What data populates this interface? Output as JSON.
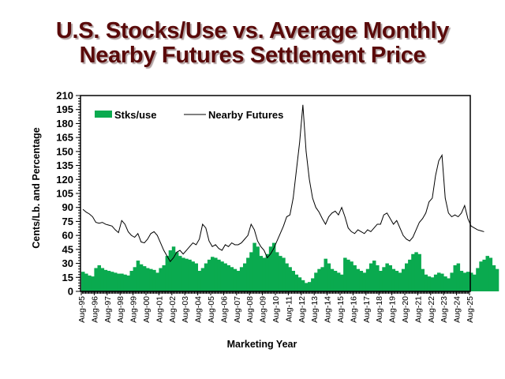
{
  "chart_data": {
    "type": "bar+line",
    "title": [
      "U.S. Stocks/Use vs. Average Monthly",
      "Nearby Futures Settlement Price"
    ],
    "xlabel": "Marketing Year",
    "ylabel": "Cents/Lb. and Percentage",
    "ylim": [
      0,
      210
    ],
    "yticks": [
      0,
      15,
      30,
      45,
      60,
      75,
      90,
      105,
      120,
      135,
      150,
      165,
      180,
      195,
      210
    ],
    "xticks": [
      "Aug-95",
      "Aug-96",
      "Aug-97",
      "Aug-98",
      "Aug-99",
      "Aug-00",
      "Aug-01",
      "Aug-02",
      "Aug-03",
      "Aug-04",
      "Aug-05",
      "Aug-06",
      "Aug-07",
      "Aug-08",
      "Aug-09",
      "Aug-10",
      "Aug-11",
      "Aug-12",
      "Aug-13",
      "Aug-14",
      "Aug-15",
      "Aug-16",
      "Aug-17",
      "Aug-18",
      "Aug-19",
      "Aug-20",
      "Aug-21",
      "Aug-22",
      "Aug-23",
      "Aug-24",
      "Aug-25"
    ],
    "x_start": 1995.583,
    "x_step_years": 0.25,
    "legend_position": "top-left",
    "series": [
      {
        "name": "Stks/use",
        "type": "bar",
        "color": "#0aaa4f",
        "values": [
          21,
          19,
          17,
          16,
          25,
          28,
          25,
          23,
          22,
          21,
          20,
          19,
          19,
          18,
          17,
          22,
          26,
          33,
          29,
          27,
          25,
          24,
          23,
          20,
          25,
          28,
          38,
          44,
          48,
          42,
          38,
          36,
          35,
          34,
          32,
          30,
          22,
          25,
          30,
          34,
          37,
          36,
          34,
          32,
          30,
          28,
          26,
          24,
          22,
          26,
          30,
          36,
          42,
          52,
          48,
          38,
          36,
          40,
          48,
          52,
          42,
          38,
          36,
          30,
          26,
          22,
          18,
          15,
          12,
          9,
          10,
          14,
          20,
          24,
          26,
          35,
          30,
          24,
          22,
          20,
          18,
          36,
          34,
          32,
          28,
          24,
          22,
          20,
          24,
          30,
          33,
          28,
          22,
          26,
          30,
          28,
          24,
          22,
          20,
          24,
          30,
          34,
          40,
          42,
          40,
          24,
          18,
          16,
          15,
          18,
          20,
          19,
          16,
          14,
          20,
          28,
          30,
          22,
          20,
          21,
          20,
          18,
          25,
          32,
          34,
          38,
          36,
          28,
          24
        ]
      },
      {
        "name": "Nearby Futures",
        "type": "line",
        "color": "#000000",
        "values": [
          88,
          85,
          83,
          80,
          74,
          73,
          74,
          72,
          71,
          70,
          66,
          63,
          76,
          72,
          64,
          60,
          58,
          62,
          53,
          52,
          56,
          62,
          64,
          60,
          52,
          44,
          38,
          32,
          36,
          42,
          44,
          40,
          44,
          48,
          52,
          50,
          56,
          72,
          68,
          54,
          48,
          50,
          46,
          44,
          50,
          48,
          52,
          50,
          50,
          52,
          56,
          60,
          72,
          66,
          54,
          48,
          44,
          36,
          40,
          46,
          54,
          62,
          70,
          80,
          82,
          100,
          130,
          160,
          200,
          150,
          120,
          100,
          90,
          85,
          78,
          72,
          80,
          84,
          86,
          82,
          90,
          80,
          68,
          64,
          62,
          66,
          64,
          62,
          66,
          64,
          68,
          72,
          72,
          82,
          84,
          78,
          72,
          76,
          68,
          60,
          56,
          54,
          58,
          66,
          74,
          78,
          84,
          96,
          100,
          124,
          140,
          146,
          100,
          84,
          80,
          82,
          80,
          84,
          92,
          78,
          70,
          68,
          66,
          65,
          64
        ]
      }
    ]
  }
}
